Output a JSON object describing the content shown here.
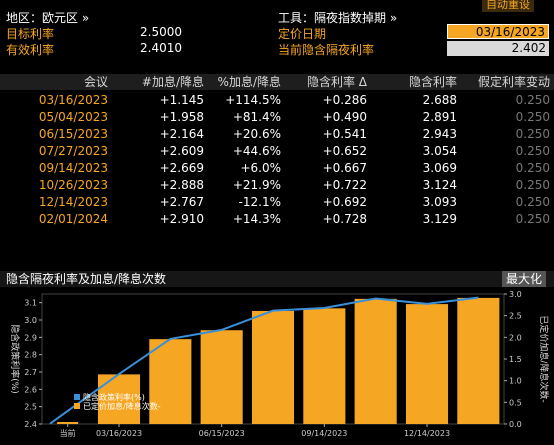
{
  "top_right": {
    "autoreset_label": "自动重设"
  },
  "left_info": {
    "region_label": "地区：欧元区 »",
    "target_rate_label": "目标利率",
    "target_rate_value": "2.5000",
    "effective_rate_label": "有效利率",
    "effective_rate_value": "2.4010"
  },
  "right_info": {
    "tool_label": "工具：隔夜指数掉期 »",
    "pricing_date_label": "定价日期",
    "pricing_date_value": "03/16/2023",
    "implied_rate_label": "当前隐含隔夜利率",
    "implied_rate_value": "2.402"
  },
  "table": {
    "headers": [
      "会议",
      "#加息/降息",
      "%加息/降息",
      "隐含利率 Δ",
      "隐含利率",
      "假定利率变动"
    ],
    "rows": [
      [
        "03/16/2023",
        "+1.145",
        "+114.5%",
        "+0.286",
        "2.688",
        "0.250"
      ],
      [
        "05/04/2023",
        "+1.958",
        "+81.4%",
        "+0.490",
        "2.891",
        "0.250"
      ],
      [
        "06/15/2023",
        "+2.164",
        "+20.6%",
        "+0.541",
        "2.943",
        "0.250"
      ],
      [
        "07/27/2023",
        "+2.609",
        "+44.6%",
        "+0.652",
        "3.054",
        "0.250"
      ],
      [
        "09/14/2023",
        "+2.669",
        "+6.0%",
        "+0.667",
        "3.069",
        "0.250"
      ],
      [
        "10/26/2023",
        "+2.888",
        "+21.9%",
        "+0.722",
        "3.124",
        "0.250"
      ],
      [
        "12/14/2023",
        "+2.767",
        "-12.1%",
        "+0.692",
        "3.093",
        "0.250"
      ],
      [
        "02/01/2024",
        "+2.910",
        "+14.3%",
        "+0.728",
        "3.129",
        "0.250"
      ]
    ]
  },
  "chart_section": {
    "title": "隐含隔夜利率及加息/降息次数",
    "max_label": "最大化"
  },
  "chart_data": {
    "type": "bar",
    "categories": [
      "当前",
      "03/16/2023",
      "05/04/2023",
      "06/15/2023",
      "07/27/2023",
      "09/14/2023",
      "10/26/2023",
      "12/14/2023",
      "02/01/2024"
    ],
    "x_tick_labels": [
      "当前",
      "03/16/2023",
      "06/15/2023",
      "09/14/2023",
      "12/14/2023"
    ],
    "series": [
      {
        "name": "隐含政策利率(%)",
        "type": "line",
        "axis": "left",
        "color": "#3a8fd9",
        "values": [
          2.402,
          2.688,
          2.891,
          2.943,
          3.054,
          3.069,
          3.124,
          3.093,
          3.129
        ]
      },
      {
        "name": "已定价加息/降息次数-",
        "type": "bar",
        "axis": "right",
        "color": "#f5a623",
        "values": [
          0,
          1.145,
          1.958,
          2.164,
          2.609,
          2.669,
          2.888,
          2.767,
          2.91
        ]
      }
    ],
    "ylabel_left": "隐含政策利率(%)",
    "ylabel_right": "已定价加息/降息次数-",
    "ylim_left": [
      2.4,
      3.15
    ],
    "ylim_right": [
      0,
      3.0
    ],
    "yticks_left": [
      "3.1",
      "3.0",
      "2.9",
      "2.8",
      "2.7",
      "2.6",
      "2.5",
      "2.4"
    ],
    "yticks_right": [
      "3.0",
      "2.5",
      "2.0",
      "1.5",
      "1.0",
      "0.5",
      "0.0"
    ],
    "legend_position": "bottom-left",
    "grid": false
  }
}
